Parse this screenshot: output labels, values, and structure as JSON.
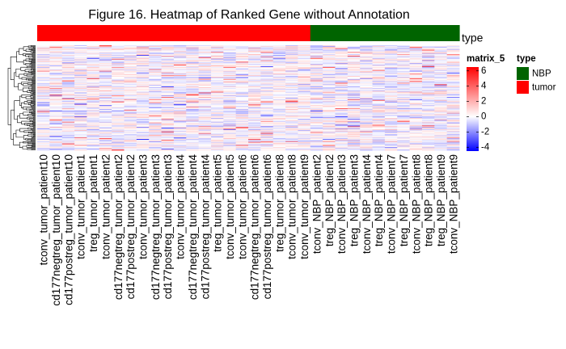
{
  "chart_data": {
    "type": "heatmap",
    "title": "Figure 16. Heatmap of Ranked Gene without Annotation",
    "columns": [
      "tconv_tumor_patient10",
      "cd177negtreg_tumor_patient10",
      "cd177postreg_tumor_patient10",
      "tconv_tumor_patient1",
      "treg_tumor_patient1",
      "tconv_tumor_patient2",
      "cd177negtreg_tumor_patient2",
      "cd177postreg_tumor_patient2",
      "tconv_tumor_patient3",
      "cd177negtreg_tumor_patient3",
      "cd177postreg_tumor_patient3",
      "tconv_tumor_patient4",
      "cd177negtreg_tumor_patient4",
      "cd177postreg_tumor_patient4",
      "treg_tumor_patient5",
      "tconv_tumor_patient5",
      "tconv_tumor_patient6",
      "cd177negtreg_tumor_patient6",
      "cd177postreg_tumor_patient6",
      "treg_tumor_patient8",
      "tconv_tumor_patient8",
      "tconv_tumor_patient9",
      "tconv_NBP_patient2",
      "treg_NBP_patient2",
      "tconv_NBP_patient3",
      "treg_NBP_patient3",
      "tconv_NBP_patient4",
      "treg_NBP_patient4",
      "tconv_NBP_patient7",
      "treg_NBP_patient7",
      "tconv_NBP_patient8",
      "treg_NBP_patient8",
      "treg_NBP_patient9",
      "tconv_NBP_patient9"
    ],
    "column_type": [
      "tumor",
      "tumor",
      "tumor",
      "tumor",
      "tumor",
      "tumor",
      "tumor",
      "tumor",
      "tumor",
      "tumor",
      "tumor",
      "tumor",
      "tumor",
      "tumor",
      "tumor",
      "tumor",
      "tumor",
      "tumor",
      "tumor",
      "tumor",
      "tumor",
      "tumor",
      "NBP",
      "NBP",
      "NBP",
      "NBP",
      "NBP",
      "NBP",
      "NBP",
      "NBP",
      "NBP",
      "NBP",
      "NBP",
      "NBP"
    ],
    "annotation_label": "type",
    "color_scale": {
      "title": "matrix_5",
      "ticks": [
        "6",
        "4",
        "2",
        "0",
        "-2",
        "-4"
      ],
      "range": [
        -4.5,
        6.5
      ],
      "low_color": "#0000ff",
      "mid_color": "#ffffff",
      "high_color": "#ff0000"
    },
    "type_legend": {
      "title": "type",
      "items": [
        {
          "label": "NBP",
          "color": "#006400"
        },
        {
          "label": "tumor",
          "color": "#ff0000"
        }
      ]
    },
    "row_dendrogram": true,
    "row_count": 140,
    "value_distribution": "mostly within -2 to 2, occasional values up to about 5 and down to about -4"
  }
}
